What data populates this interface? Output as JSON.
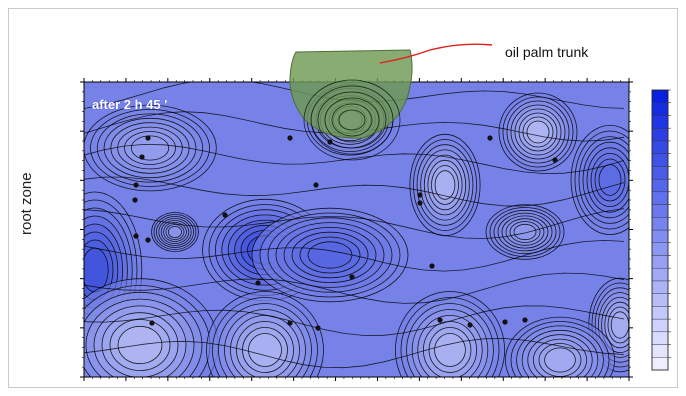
{
  "figure": {
    "time_label": "after 2 h 45 '",
    "y_axis_label": "root zone",
    "callout_label": "oil palm trunk",
    "trunk_color": "#6e9a52",
    "callout_line_color": "#e02020",
    "field_colors": [
      "#f2f2ff",
      "#2a3ed8"
    ],
    "colorbar_colors": [
      "#eeeeff",
      "#0a22e0"
    ],
    "contour_color": "#000000"
  }
}
